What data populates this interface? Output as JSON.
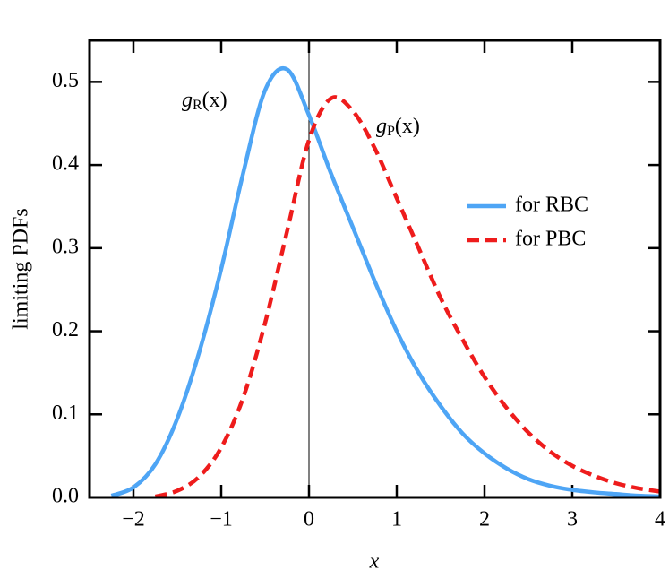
{
  "chart_data": {
    "type": "line",
    "xlabel": "x",
    "ylabel": "limiting  PDFs",
    "x": [
      -2.5,
      -2.25,
      -2,
      -1.75,
      -1.5,
      -1.25,
      -1,
      -0.75,
      -0.5,
      -0.25,
      0,
      0.25,
      0.5,
      0.75,
      1,
      1.25,
      1.5,
      1.75,
      2,
      2.25,
      2.5,
      2.75,
      3,
      3.25,
      3.5,
      3.75,
      4
    ],
    "series": [
      {
        "name": "for RBC",
        "color": "#4ea5f5",
        "dash": false,
        "values": [
          null,
          0.002,
          0.012,
          0.04,
          0.095,
          0.175,
          0.275,
          0.39,
          0.49,
          0.515,
          0.46,
          0.39,
          0.325,
          0.26,
          0.2,
          0.15,
          0.11,
          0.077,
          0.053,
          0.035,
          0.022,
          0.014,
          0.009,
          0.006,
          0.004,
          0.002,
          0.001
        ]
      },
      {
        "name": "for PBC",
        "color": "#ee1c1c",
        "dash": true,
        "values": [
          null,
          null,
          null,
          0.001,
          0.008,
          0.025,
          0.06,
          0.12,
          0.21,
          0.32,
          0.43,
          0.48,
          0.465,
          0.42,
          0.36,
          0.3,
          0.24,
          0.19,
          0.145,
          0.108,
          0.078,
          0.055,
          0.038,
          0.026,
          0.017,
          0.011,
          0.007
        ]
      }
    ],
    "annotations": [
      {
        "base": "g",
        "sub": "R",
        "arg": "(x)"
      },
      {
        "base": "g",
        "sub": "P",
        "arg": "(x)"
      }
    ],
    "xlim": [
      -2.5,
      4
    ],
    "ylim": [
      0,
      0.55
    ],
    "xticks": [
      {
        "value": -2,
        "label": "−2"
      },
      {
        "value": -1,
        "label": "−1"
      },
      0,
      1,
      2,
      3,
      4
    ],
    "yticks": [
      {
        "value": 0,
        "label": "0.0"
      },
      0.1,
      0.2,
      0.3,
      0.4,
      0.5
    ],
    "legend": "right"
  }
}
